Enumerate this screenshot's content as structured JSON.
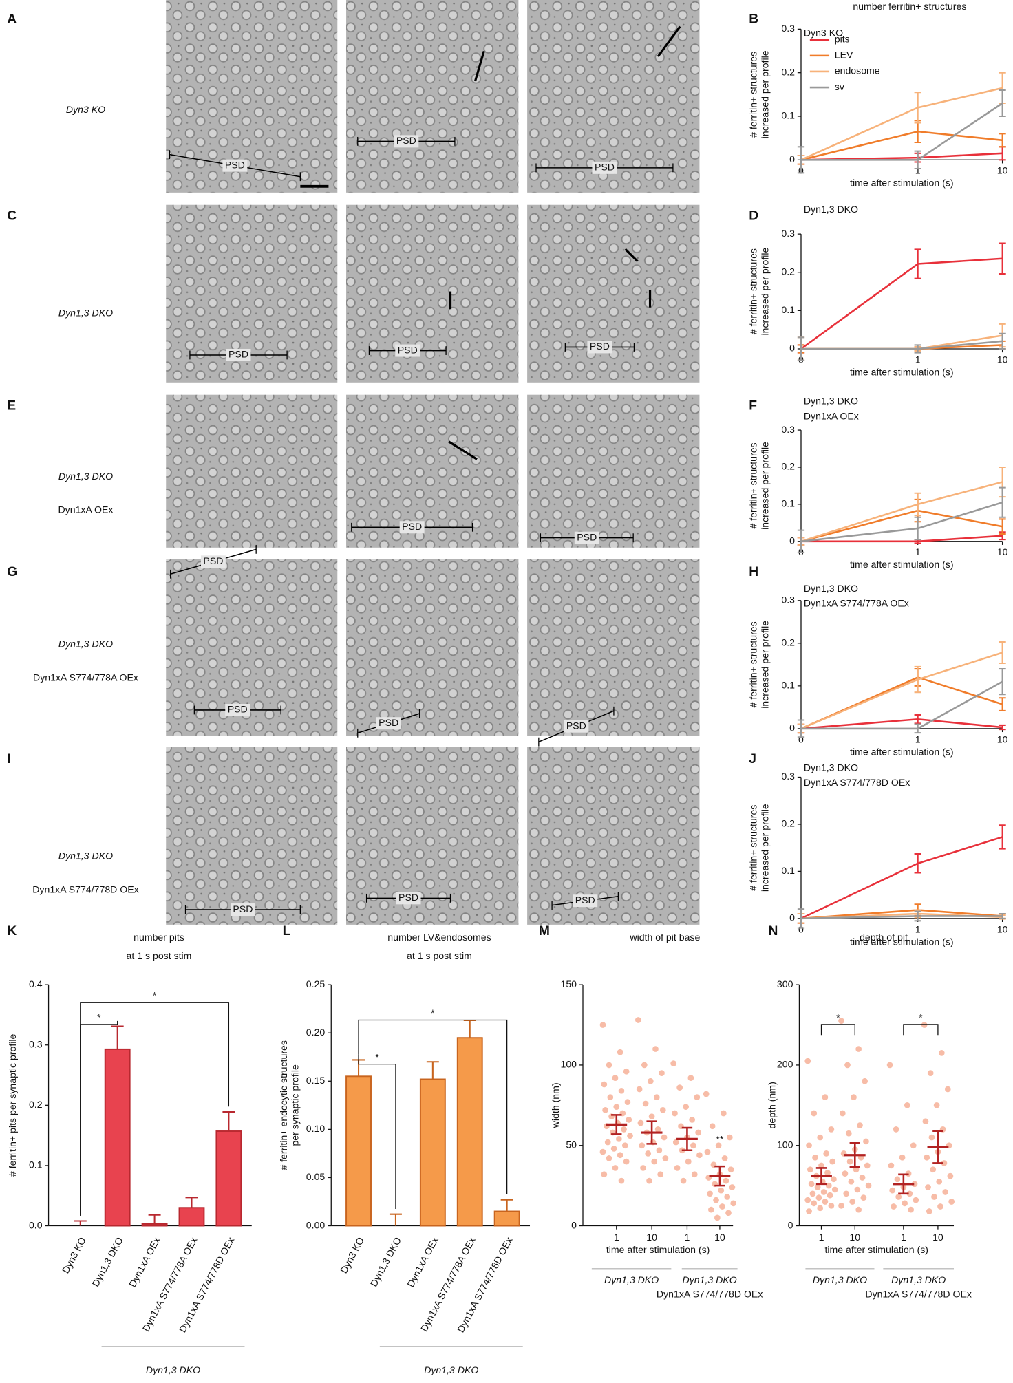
{
  "panel_labels": [
    "A",
    "B",
    "C",
    "D",
    "E",
    "F",
    "G",
    "H",
    "I",
    "J",
    "K",
    "L",
    "M",
    "N"
  ],
  "psd_label": "PSD",
  "micrograph_rows": [
    {
      "genotype": "Dyn3 KO"
    },
    {
      "genotype": "Dyn1,3 DKO"
    },
    {
      "genotype": "Dyn1,3 DKO",
      "construct": "Dyn1xA OEx",
      "construct_color": "#39b54a"
    },
    {
      "genotype": "Dyn1,3 DKO",
      "construct": "Dyn1xA S774/778A OEx",
      "construct_color": "#8dc63f"
    },
    {
      "genotype": "Dyn1,3 DKO",
      "construct": "Dyn1xA S774/778D OEx",
      "construct_color": "#00703c"
    }
  ],
  "chart_data": [
    {
      "type": "line",
      "title": "number ferritin+ structures",
      "annotations": [
        {
          "text": "Dyn3 KO",
          "color": "#000000"
        }
      ],
      "ylabel": [
        "# ferritin+ structures",
        "increased per profile"
      ],
      "xlabel": "time after stimulation (s)",
      "x": [
        0,
        1,
        10
      ],
      "xticks": [
        0,
        1,
        10
      ],
      "xscale": "log",
      "ylim": [
        0,
        0.3
      ],
      "yticks": [
        0,
        0.1,
        0.2,
        0.3
      ],
      "legend": "upper left",
      "series": [
        {
          "name": "pits",
          "color": "#e8303a",
          "values": [
            0,
            0.005,
            0.015
          ],
          "errors": [
            0.01,
            0.01,
            0.015
          ]
        },
        {
          "name": "LEV",
          "color": "#f07c2a",
          "values": [
            0,
            0.065,
            0.045
          ],
          "errors": [
            0.01,
            0.025,
            0.015
          ]
        },
        {
          "name": "endosome",
          "color": "#f7b27a",
          "values": [
            0,
            0.12,
            0.165
          ],
          "errors": [
            0.01,
            0.035,
            0.035
          ]
        },
        {
          "name": "sv",
          "color": "#999999",
          "values": [
            0,
            0,
            0.13
          ],
          "errors": [
            0.03,
            0.02,
            0.03
          ]
        }
      ]
    },
    {
      "type": "line",
      "annotations": [
        {
          "text": "Dyn1,3 DKO",
          "color": "#000000"
        }
      ],
      "ylabel": [
        "# ferritin+ structures",
        "increased per profile"
      ],
      "xlabel": "time after stimulation (s)",
      "x": [
        0,
        1,
        10
      ],
      "xticks": [
        0,
        1,
        10
      ],
      "xscale": "log",
      "ylim": [
        0,
        0.3
      ],
      "yticks": [
        0,
        0.1,
        0.2,
        0.3
      ],
      "series": [
        {
          "color": "#e8303a",
          "values": [
            0,
            0.222,
            0.236
          ],
          "errors": [
            0.01,
            0.038,
            0.04
          ]
        },
        {
          "color": "#f07c2a",
          "values": [
            0,
            0,
            0.01
          ],
          "errors": [
            0.01,
            0.005,
            0.01
          ]
        },
        {
          "color": "#f7b27a",
          "values": [
            0,
            0,
            0.035
          ],
          "errors": [
            0.03,
            0.005,
            0.03
          ]
        },
        {
          "color": "#999999",
          "values": [
            0,
            0,
            0.02
          ],
          "errors": [
            0.03,
            0.01,
            0.02
          ]
        }
      ]
    },
    {
      "type": "line",
      "annotations": [
        {
          "text": "Dyn1,3 DKO",
          "color": "#000000"
        },
        {
          "text": "Dyn1xA OEx",
          "color": "#39b54a"
        }
      ],
      "ylabel": [
        "# ferritin+ structures",
        "increased per profile"
      ],
      "xlabel": "time after stimulation (s)",
      "x": [
        0,
        1,
        10
      ],
      "xticks": [
        0,
        1,
        10
      ],
      "xscale": "log",
      "ylim": [
        0,
        0.3
      ],
      "yticks": [
        0,
        0.1,
        0.2,
        0.3
      ],
      "series": [
        {
          "color": "#e8303a",
          "values": [
            0,
            0,
            0.015
          ],
          "errors": [
            0.01,
            0.005,
            0.01
          ]
        },
        {
          "color": "#f07c2a",
          "values": [
            0,
            0.083,
            0.04
          ],
          "errors": [
            0.01,
            0.03,
            0.02
          ]
        },
        {
          "color": "#f7b27a",
          "values": [
            0,
            0.1,
            0.16
          ],
          "errors": [
            0.01,
            0.03,
            0.04
          ]
        },
        {
          "color": "#999999",
          "values": [
            0,
            0.035,
            0.105
          ],
          "errors": [
            0.03,
            0.03,
            0.04
          ]
        }
      ]
    },
    {
      "type": "line",
      "annotations": [
        {
          "text": "Dyn1,3 DKO",
          "color": "#000000"
        },
        {
          "text": "Dyn1xA S774/778A OEx",
          "color": "#8dc63f"
        }
      ],
      "ylabel": [
        "# ferritin+ structures",
        "increased per profile"
      ],
      "xlabel": "time after stimulation (s)",
      "x": [
        0,
        1,
        10
      ],
      "xticks": [
        0,
        1,
        10
      ],
      "xscale": "log",
      "ylim": [
        0,
        0.3
      ],
      "yticks": [
        0,
        0.1,
        0.2,
        0.3
      ],
      "series": [
        {
          "color": "#e8303a",
          "values": [
            0,
            0.022,
            0.003
          ],
          "errors": [
            0.01,
            0.01,
            0.005
          ]
        },
        {
          "color": "#f07c2a",
          "values": [
            0,
            0.12,
            0.057
          ],
          "errors": [
            0.01,
            0.02,
            0.015
          ]
        },
        {
          "color": "#f7b27a",
          "values": [
            0,
            0.115,
            0.178
          ],
          "errors": [
            0.01,
            0.03,
            0.025
          ]
        },
        {
          "color": "#999999",
          "values": [
            0,
            0,
            0.11
          ],
          "errors": [
            0.02,
            0.01,
            0.03
          ]
        }
      ]
    },
    {
      "type": "line",
      "annotations": [
        {
          "text": "Dyn1,3 DKO",
          "color": "#000000"
        },
        {
          "text": "Dyn1xA S774/778D OEx",
          "color": "#00703c"
        }
      ],
      "ylabel": [
        "# ferritin+ structures",
        "increased per profile"
      ],
      "xlabel": "time after stimulation (s)",
      "x": [
        0,
        1,
        10
      ],
      "xticks": [
        0,
        1,
        10
      ],
      "xscale": "log",
      "ylim": [
        0,
        0.3
      ],
      "yticks": [
        0,
        0.1,
        0.2,
        0.3
      ],
      "series": [
        {
          "color": "#e8303a",
          "values": [
            0,
            0.117,
            0.173
          ],
          "errors": [
            0.01,
            0.02,
            0.025
          ]
        },
        {
          "color": "#f07c2a",
          "values": [
            0,
            0.018,
            0.005
          ],
          "errors": [
            0.01,
            0.012,
            0.005
          ]
        },
        {
          "color": "#f7b27a",
          "values": [
            0,
            0.01,
            0.003
          ],
          "errors": [
            0.01,
            0.008,
            0.004
          ]
        },
        {
          "color": "#999999",
          "values": [
            0,
            0.005,
            0.005
          ],
          "errors": [
            0.02,
            0.01,
            0.005
          ]
        }
      ]
    },
    {
      "type": "bar",
      "title": [
        "number pits",
        "at 1 s post stim"
      ],
      "ylabel": [
        "# ferritin+ pits per synaptic profile"
      ],
      "categories": [
        "Dyn3 KO",
        "Dyn1,3 DKO",
        "Dyn1xA OEx",
        "Dyn1xA S774/778A OEx",
        "Dyn1xA S774/778D OEx"
      ],
      "category_colors": [
        "#000000",
        "#000000",
        "#39b54a",
        "#8dc63f",
        "#00703c"
      ],
      "values": [
        0,
        0.293,
        0.003,
        0.03,
        0.157
      ],
      "errors": [
        0.008,
        0.038,
        0.015,
        0.017,
        0.032
      ],
      "color": "#e8434f",
      "edge_color": "#b8282f",
      "ylim": [
        0,
        0.4
      ],
      "yticks": [
        {
          "value": 0,
          "label": "0.0"
        },
        0.1,
        0.2,
        0.3,
        0.4
      ],
      "group": {
        "label": "Dyn1,3 DKO",
        "from": 1,
        "to": 4
      },
      "significance": [
        {
          "from": 0,
          "to": 1,
          "label": "*"
        },
        {
          "from": 0,
          "to": 4,
          "label": "*"
        }
      ]
    },
    {
      "type": "bar",
      "title": [
        "number LV&endosomes",
        "at 1 s post stim"
      ],
      "ylabel": [
        "# ferritin+ endocytic structures",
        "per synaptic profile"
      ],
      "categories": [
        "Dyn3 KO",
        "Dyn1,3 DKO",
        "Dyn1xA OEx",
        "Dyn1xA S774/778A OEx",
        "Dyn1xA S774/778D OEx"
      ],
      "category_colors": [
        "#000000",
        "#000000",
        "#39b54a",
        "#8dc63f",
        "#00703c"
      ],
      "values": [
        0.155,
        0,
        0.152,
        0.195,
        0.015
      ],
      "errors": [
        0.017,
        0.012,
        0.018,
        0.018,
        0.012
      ],
      "color": "#f59a4a",
      "edge_color": "#c8641e",
      "ylim": [
        0,
        0.25
      ],
      "yticks": [
        {
          "value": 0,
          "label": "0.00"
        },
        {
          "value": 0.05,
          "label": "0.05"
        },
        {
          "value": 0.1,
          "label": "0.10"
        },
        {
          "value": 0.15,
          "label": "0.15"
        },
        {
          "value": 0.2,
          "label": "0.20"
        },
        {
          "value": 0.25,
          "label": "0.25"
        }
      ],
      "group": {
        "label": "Dyn1,3 DKO",
        "from": 1,
        "to": 4
      },
      "significance": [
        {
          "from": 0,
          "to": 1,
          "label": "*"
        },
        {
          "from": 0,
          "to": 4,
          "label": "*"
        }
      ]
    },
    {
      "type": "dot",
      "title": [
        "width of pit base"
      ],
      "ylabel": [
        "width (nm)"
      ],
      "xlabel": "time after stimulation (s)",
      "categories": [
        "1",
        "10",
        "1",
        "10"
      ],
      "points": [
        [
          125,
          108,
          100,
          96,
          92,
          88,
          84,
          80,
          77,
          74,
          72,
          70,
          68,
          66,
          64,
          62,
          60,
          58,
          56,
          54,
          52,
          50,
          48,
          46,
          44,
          42,
          40,
          36,
          32,
          28
        ],
        [
          128,
          110,
          100,
          95,
          90,
          85,
          80,
          76,
          72,
          68,
          64,
          60,
          58,
          55,
          52,
          50,
          47,
          45,
          42,
          40,
          36,
          32,
          28
        ],
        [
          101,
          92,
          86,
          80,
          74,
          70,
          66,
          62,
          58,
          55,
          52,
          50,
          47,
          44,
          40,
          36,
          32,
          28
        ],
        [
          82,
          70,
          62,
          55,
          50,
          46,
          42,
          38,
          35,
          32,
          30,
          28,
          26,
          24,
          22,
          20,
          18,
          16,
          14,
          12,
          10,
          8,
          5
        ]
      ],
      "means": [
        63,
        58,
        54,
        31
      ],
      "errors": [
        6,
        7,
        7,
        6
      ],
      "ylim": [
        0,
        150
      ],
      "yticks": [
        0,
        50,
        100,
        150
      ],
      "groups": [
        {
          "lines": [
            "Dyn1,3 DKO"
          ],
          "colors": [
            "#000000"
          ]
        },
        {
          "lines": [
            "Dyn1,3 DKO",
            "Dyn1xA S774/778D OEx"
          ],
          "colors": [
            "#000000",
            "#00703c"
          ]
        }
      ],
      "annotations": [
        {
          "category": 3,
          "text": "**"
        }
      ]
    },
    {
      "type": "dot",
      "title": [
        "depth of pit"
      ],
      "ylabel": [
        "depth (nm)"
      ],
      "xlabel": "time after stimulation (s)",
      "categories": [
        "1",
        "10",
        "1",
        "10"
      ],
      "points": [
        [
          205,
          160,
          140,
          120,
          110,
          100,
          90,
          85,
          80,
          75,
          70,
          66,
          62,
          58,
          55,
          52,
          50,
          48,
          45,
          42,
          40,
          38,
          35,
          32,
          30,
          28,
          25,
          22,
          18
        ],
        [
          255,
          220,
          200,
          180,
          160,
          140,
          125,
          115,
          105,
          95,
          90,
          85,
          80,
          75,
          70,
          65,
          60,
          55,
          50,
          45,
          40,
          35,
          30,
          25,
          20
        ],
        [
          200,
          150,
          120,
          100,
          85,
          75,
          65,
          58,
          52,
          48,
          44,
          40,
          36,
          32,
          28,
          24,
          20
        ],
        [
          250,
          215,
          190,
          170,
          150,
          130,
          120,
          110,
          100,
          92,
          85,
          78,
          70,
          62,
          55,
          48,
          42,
          36,
          30,
          24,
          18
        ]
      ],
      "means": [
        62,
        88,
        52,
        98
      ],
      "errors": [
        10,
        15,
        12,
        20
      ],
      "ylim": [
        0,
        300
      ],
      "yticks": [
        0,
        100,
        200,
        300
      ],
      "groups": [
        {
          "lines": [
            "Dyn1,3 DKO"
          ],
          "colors": [
            "#000000"
          ]
        },
        {
          "lines": [
            "Dyn1,3 DKO",
            "Dyn1xA S774/778D OEx"
          ],
          "colors": [
            "#000000",
            "#00703c"
          ]
        }
      ],
      "significance": [
        {
          "from": 0,
          "to": 1,
          "label": "*"
        },
        {
          "from": 2,
          "to": 3,
          "label": "*"
        }
      ]
    }
  ]
}
